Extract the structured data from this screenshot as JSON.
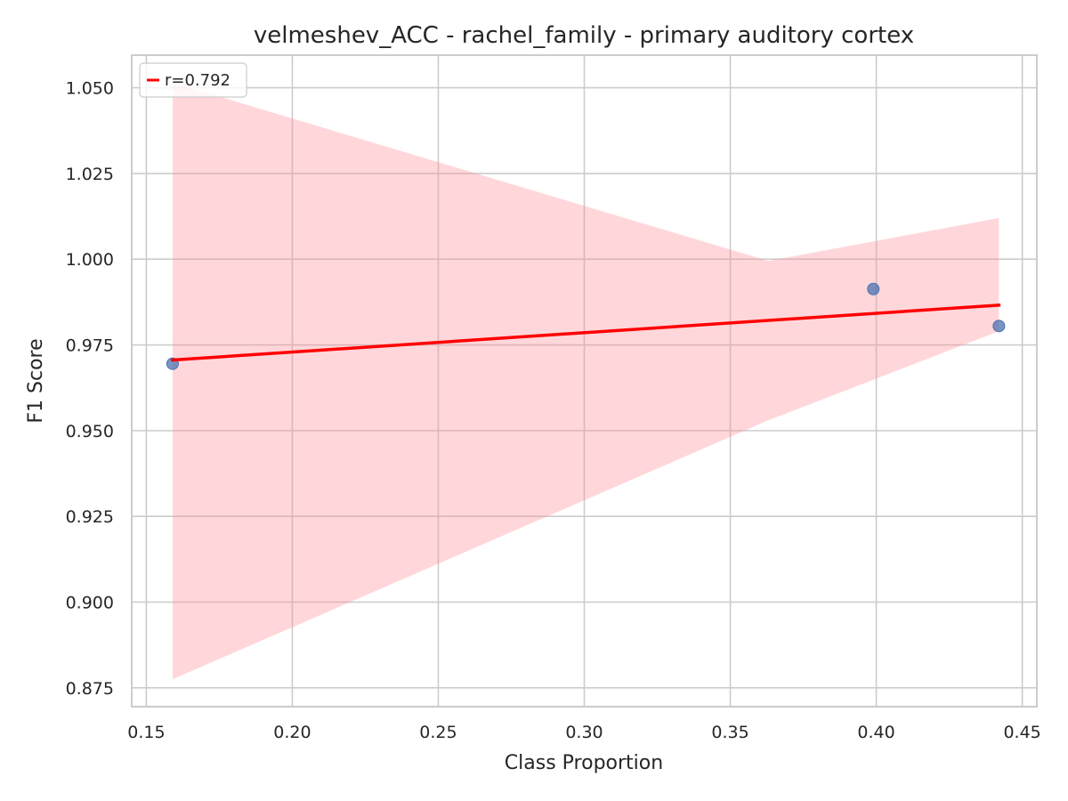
{
  "chart_data": {
    "type": "scatter",
    "title": "velmeshev_ACC - rachel_family - primary auditory cortex",
    "xlabel": "Class Proportion",
    "ylabel": "F1 Score",
    "xlim": [
      0.145,
      0.455
    ],
    "ylim": [
      0.8695,
      1.0595
    ],
    "xticks": [
      0.15,
      0.2,
      0.25,
      0.3,
      0.35,
      0.4,
      0.45
    ],
    "xtick_labels": [
      "0.15",
      "0.20",
      "0.25",
      "0.30",
      "0.35",
      "0.40",
      "0.45"
    ],
    "yticks": [
      0.875,
      0.9,
      0.925,
      0.95,
      0.975,
      1.0,
      1.025,
      1.05
    ],
    "ytick_labels": [
      "0.875",
      "0.900",
      "0.925",
      "0.950",
      "0.975",
      "1.000",
      "1.025",
      "1.050"
    ],
    "grid": true,
    "points": [
      {
        "x": 0.159,
        "y": 0.9695
      },
      {
        "x": 0.399,
        "y": 0.9913
      },
      {
        "x": 0.442,
        "y": 0.9805
      }
    ],
    "regression": {
      "label": "r=0.792",
      "x": [
        0.159,
        0.442
      ],
      "y": [
        0.9706,
        0.9866
      ]
    },
    "confidence_band": {
      "x": [
        0.159,
        0.363,
        0.442
      ],
      "upper": [
        1.0515,
        0.9995,
        1.012
      ],
      "lower": [
        0.8775,
        0.953,
        0.979
      ]
    },
    "legend": {
      "position": "upper-left",
      "entries": [
        "r=0.792"
      ]
    },
    "colors": {
      "points": "#4c72b0",
      "regression": "#ff0000",
      "band": "#ff8c94",
      "grid": "#cccccc"
    }
  }
}
